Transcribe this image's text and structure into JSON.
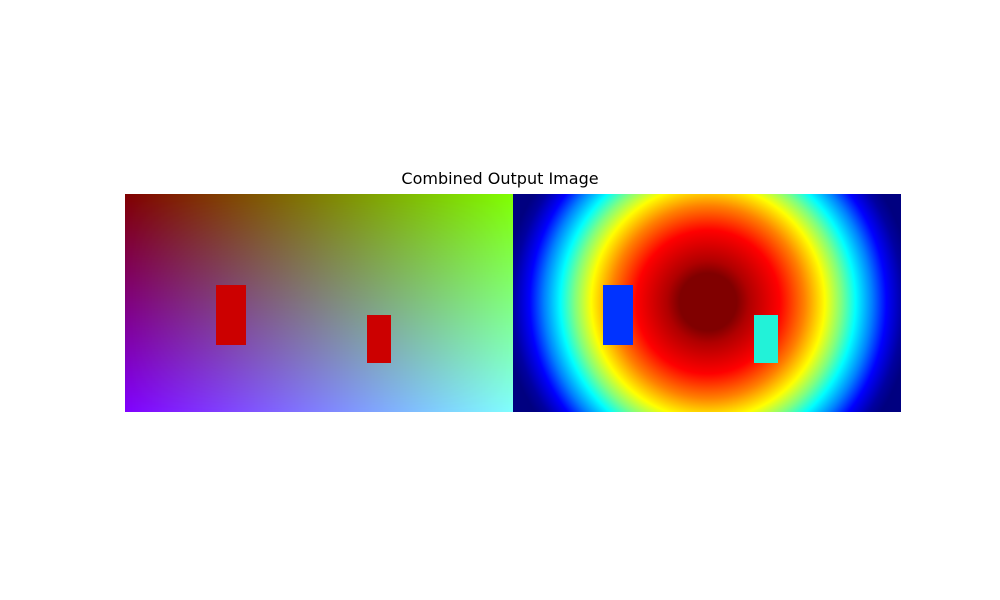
{
  "figure": {
    "title": "Combined Output Image"
  },
  "left_panel": {
    "rects": [
      {
        "color": "#cc0000"
      },
      {
        "color": "#cc0000"
      }
    ]
  },
  "right_panel": {
    "colormap": "jet",
    "rects": [
      {
        "color": "#0033ff"
      },
      {
        "color": "#22f2d8"
      }
    ]
  }
}
